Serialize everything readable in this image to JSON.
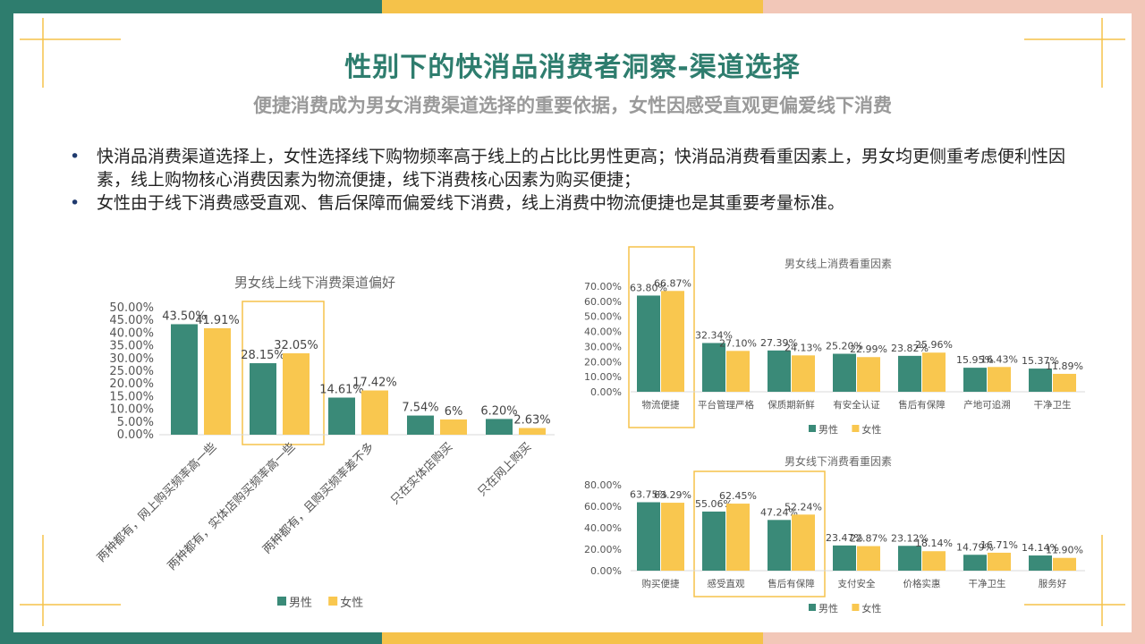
{
  "title": "性别下的快消品消费者洞察-渠道选择",
  "subtitle": "便捷消费成为男女消费渠道选择的重要依据，女性因感受直观更偏爱线下消费",
  "bullets": [
    "快消品消费渠道选择上，女性选择线下购物频率高于线上的占比比男性更高；快消品消费看重因素上，男女均更侧重考虑便利性因素，线上购物核心消费因素为物流便捷，线下消费核心因素为购买便捷；",
    "女性由于线下消费感受直观、售后保障而偏爱线下消费，线上消费中物流便捷也是其重要考量标准。"
  ],
  "colors": {
    "male": "#3a8a78",
    "female": "#f9c74f",
    "highlight": "#f5c24a",
    "teal": "#2e7d6e"
  },
  "chart_data": [
    {
      "type": "bar",
      "title": "男女线上线下消费渠道偏好",
      "categories": [
        "两种都有，网上购买频率高一些",
        "两种都有，实体店购买频率高一些",
        "两种都有，且购买频率差不多",
        "只在实体店购买",
        "只在网上购买"
      ],
      "series": [
        {
          "name": "男性",
          "values": [
            43.5,
            28.15,
            14.61,
            7.54,
            6.2
          ],
          "labels": [
            "43.50%",
            "28.15%",
            "14.61%",
            "7.54%",
            "6.20%"
          ]
        },
        {
          "name": "女性",
          "values": [
            41.91,
            32.05,
            17.42,
            6.0,
            2.63
          ],
          "labels": [
            "41.91%",
            "32.05%",
            "17.42%",
            "6%",
            "2.63%"
          ]
        }
      ],
      "ylim": [
        0,
        50
      ],
      "yticks": [
        "0.00%",
        "5.00%",
        "10.00%",
        "15.00%",
        "20.00%",
        "25.00%",
        "30.00%",
        "35.00%",
        "40.00%",
        "45.00%",
        "50.00%"
      ],
      "highlight_index": 1,
      "legend": "bottom"
    },
    {
      "type": "bar",
      "title": "男女线上消费看重因素",
      "categories": [
        "物流便捷",
        "平台管理严格",
        "保质期新鲜",
        "有安全认证",
        "售后有保障",
        "产地可追溯",
        "干净卫生"
      ],
      "series": [
        {
          "name": "男性",
          "values": [
            63.8,
            32.34,
            27.39,
            25.2,
            23.82,
            15.95,
            15.37
          ],
          "labels": [
            "63.80%",
            "32.34%",
            "27.39%",
            "25.20%",
            "23.82%",
            "15.95%",
            "15.37%"
          ]
        },
        {
          "name": "女性",
          "values": [
            66.87,
            27.1,
            24.13,
            22.99,
            25.96,
            16.43,
            11.89
          ],
          "labels": [
            "66.87%",
            "27.10%",
            "24.13%",
            "22.99%",
            "25.96%",
            "16.43%",
            "11.89%"
          ]
        }
      ],
      "ylim": [
        0,
        70
      ],
      "yticks": [
        "0.00%",
        "10.00%",
        "20.00%",
        "30.00%",
        "40.00%",
        "50.00%",
        "60.00%",
        "70.00%"
      ],
      "highlight_index": 0,
      "legend": "bottom"
    },
    {
      "type": "bar",
      "title": "男女线下消费看重因素",
      "categories": [
        "购买便捷",
        "感受直观",
        "售后有保障",
        "支付安全",
        "价格实惠",
        "干净卫生",
        "服务好"
      ],
      "series": [
        {
          "name": "男性",
          "values": [
            63.75,
            55.06,
            47.24,
            23.47,
            23.12,
            14.79,
            14.14
          ],
          "labels": [
            "63.75%",
            "55.06%",
            "47.24%",
            "23.47%",
            "23.12%",
            "14.79%",
            "14.14%"
          ]
        },
        {
          "name": "女性",
          "values": [
            63.29,
            62.45,
            52.24,
            22.87,
            18.14,
            16.71,
            11.9
          ],
          "labels": [
            "63.29%",
            "62.45%",
            "52.24%",
            "22.87%",
            "18.14%",
            "16.71%",
            "11.90%"
          ]
        }
      ],
      "ylim": [
        0,
        80
      ],
      "yticks": [
        "0.00%",
        "20.00%",
        "40.00%",
        "60.00%",
        "80.00%"
      ],
      "highlight_range": [
        1,
        2
      ],
      "legend": "bottom"
    }
  ]
}
